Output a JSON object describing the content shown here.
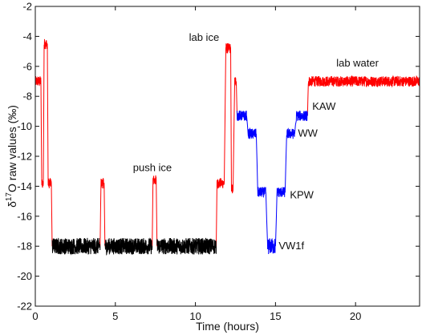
{
  "chart_data": {
    "type": "line",
    "title": "",
    "xlabel": "Time (hours)",
    "ylabel_prefix": "δ",
    "ylabel_sup": "17",
    "ylabel_rest": "O raw values (‰)",
    "xlim": [
      0,
      24
    ],
    "ylim": [
      -22,
      -2
    ],
    "xticks": [
      0,
      5,
      10,
      15,
      20
    ],
    "yticks": [
      -22,
      -20,
      -18,
      -16,
      -14,
      -12,
      -10,
      -8,
      -6,
      -4,
      -2
    ],
    "xtick_labels": [
      "0",
      "5",
      "10",
      "15",
      "20"
    ],
    "ytick_labels": [
      "-22",
      "-20",
      "-18",
      "-16",
      "-14",
      "-12",
      "-10",
      "-8",
      "-6",
      "-4",
      "-2"
    ],
    "grid": false,
    "series": [
      {
        "color": "#ff0000",
        "segments": [
          [
            [
              0.0,
              -7.0
            ],
            [
              0.35,
              -7.0
            ],
            [
              0.4,
              -13.8
            ],
            [
              0.5,
              -13.8
            ],
            [
              0.55,
              -4.5
            ],
            [
              0.75,
              -4.5
            ],
            [
              0.8,
              -13.8
            ],
            [
              1.0,
              -13.8
            ],
            [
              1.05,
              -18.0
            ]
          ],
          [
            [
              4.05,
              -18.0
            ],
            [
              4.1,
              -13.8
            ],
            [
              4.3,
              -13.8
            ],
            [
              4.35,
              -18.0
            ]
          ],
          [
            [
              7.3,
              -18.0
            ],
            [
              7.35,
              -13.6
            ],
            [
              7.55,
              -13.6
            ],
            [
              7.6,
              -18.0
            ]
          ],
          [
            [
              11.3,
              -18.0
            ],
            [
              11.35,
              -13.8
            ],
            [
              11.8,
              -13.8
            ],
            [
              11.9,
              -4.8
            ],
            [
              12.2,
              -4.8
            ],
            [
              12.25,
              -14.2
            ],
            [
              12.35,
              -14.2
            ],
            [
              12.45,
              -7.0
            ],
            [
              12.55,
              -7.0
            ],
            [
              12.6,
              -9.3
            ]
          ],
          [
            [
              17.0,
              -9.3
            ],
            [
              17.05,
              -7.0
            ],
            [
              24.0,
              -7.0
            ]
          ]
        ]
      },
      {
        "color": "#000000",
        "segments": [
          [
            [
              1.05,
              -18.0
            ],
            [
              4.05,
              -18.0
            ]
          ],
          [
            [
              4.35,
              -18.0
            ],
            [
              7.3,
              -18.0
            ]
          ],
          [
            [
              7.6,
              -18.0
            ],
            [
              11.3,
              -18.0
            ]
          ]
        ]
      },
      {
        "color": "#0000ff",
        "segments": [
          [
            [
              12.6,
              -9.3
            ],
            [
              13.2,
              -9.3
            ],
            [
              13.3,
              -10.5
            ],
            [
              13.8,
              -10.5
            ],
            [
              13.9,
              -14.4
            ],
            [
              14.4,
              -14.4
            ],
            [
              14.5,
              -18.0
            ],
            [
              15.0,
              -18.0
            ],
            [
              15.1,
              -14.4
            ],
            [
              15.6,
              -14.4
            ],
            [
              15.7,
              -10.5
            ],
            [
              16.2,
              -10.5
            ],
            [
              16.3,
              -9.3
            ],
            [
              17.0,
              -9.3
            ]
          ]
        ]
      }
    ],
    "annotations": [
      {
        "text": "push ice",
        "x": 6.1,
        "y": -13.0
      },
      {
        "text": "lab ice",
        "x": 9.6,
        "y": -4.3
      },
      {
        "text": "lab water",
        "x": 18.8,
        "y": -6.0
      },
      {
        "text": "KAW",
        "x": 17.3,
        "y": -8.9
      },
      {
        "text": "WW",
        "x": 16.4,
        "y": -10.7
      },
      {
        "text": "KPW",
        "x": 15.9,
        "y": -14.8
      },
      {
        "text": "VW1f",
        "x": 15.2,
        "y": -18.2
      }
    ]
  }
}
